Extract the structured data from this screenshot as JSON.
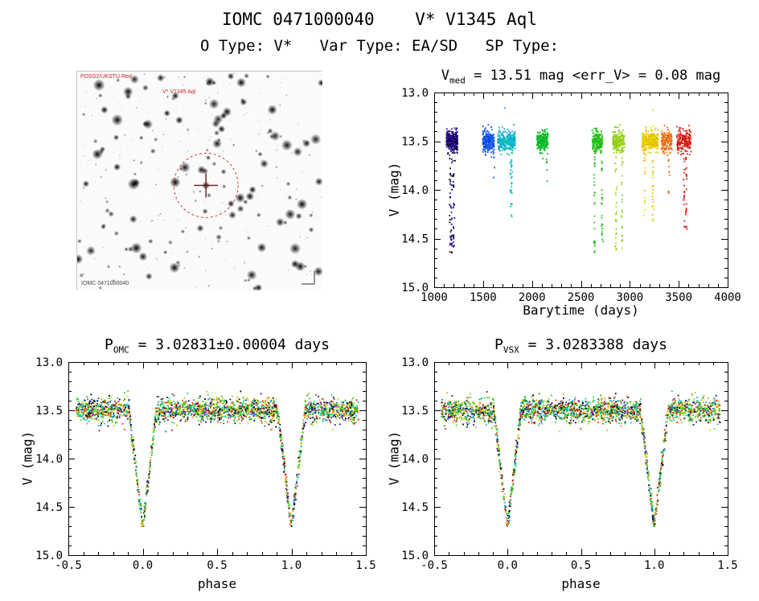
{
  "page": {
    "title": "IOMC 0471000040    V* V1345 Aql",
    "subtitle": "O Type: V*   Var Type: EA/SD   SP Type:"
  },
  "finder": {
    "labels": {
      "top_left": "POSS2/UKSTU Red",
      "star": "V* V1345 Aql",
      "bottom_left": "IOMC 0471000040"
    },
    "circle_color": "#cc2222",
    "cross_color": "#6b1a1a",
    "seed": 5,
    "n_stars": 260,
    "target_x": 0.525,
    "target_y": 0.52,
    "circle_radius": 40
  },
  "chart_data": [
    {
      "type": "scatter",
      "name": "time-lightcurve",
      "title_parts": {
        "pre": "V",
        "sub": "med",
        "post": " = 13.51 mag <err_V> = 0.08 mag"
      },
      "xlabel": "Barytime (days)",
      "ylabel": "V (mag)",
      "xlim": [
        1000,
        4000
      ],
      "ylim": [
        13.0,
        15.0
      ],
      "y_axis_reversed": true,
      "xticks": [
        1000,
        1500,
        2000,
        2500,
        3000,
        3500,
        4000
      ],
      "xtick_labels": [
        "1000",
        "1500",
        "2000",
        "2500",
        "3000",
        "3500",
        "4000"
      ],
      "yticks": [
        13.0,
        13.5,
        14.0,
        14.5,
        15.0
      ],
      "ytick_labels": [
        "13.0",
        "13.5",
        "14.0",
        "14.5",
        "15.0"
      ],
      "x_minor_step": 100,
      "y_minor_step": 0.1,
      "baseline_mag": 13.5,
      "baseline_spread": 0.055,
      "seed": 42,
      "clusters": [
        {
          "t": [
            1125,
            1240
          ],
          "colors": [
            "#000000",
            "#14007a",
            "#3a00a0",
            "#22228a"
          ],
          "n": 300,
          "streaks": 3,
          "deep_n": 70,
          "deep_to": 14.68
        },
        {
          "t": [
            1495,
            1615
          ],
          "colors": [
            "#0044dd",
            "#2266ee"
          ],
          "n": 240,
          "streaks": 1,
          "deep_n": 5,
          "deep_to": 13.95
        },
        {
          "t": [
            1650,
            1830
          ],
          "colors": [
            "#2299ee",
            "#00bbcc",
            "#00cc99"
          ],
          "n": 300,
          "streaks": 2,
          "deep_n": 28,
          "deep_to": 14.3,
          "bright": [
            13.16
          ]
        },
        {
          "t": [
            2050,
            2165
          ],
          "colors": [
            "#00b33c",
            "#19bf19"
          ],
          "n": 230,
          "streaks": 1,
          "deep_n": 6,
          "deep_to": 13.95
        },
        {
          "t": [
            2615,
            2720
          ],
          "colors": [
            "#2fcc2f",
            "#19b300"
          ],
          "n": 190,
          "streaks": 2,
          "deep_n": 55,
          "deep_to": 14.68
        },
        {
          "t": [
            2825,
            2945
          ],
          "colors": [
            "#86cc14",
            "#a3d119"
          ],
          "n": 200,
          "streaks": 2,
          "deep_n": 48,
          "deep_to": 14.62
        },
        {
          "t": [
            3125,
            3290
          ],
          "colors": [
            "#d6cf00",
            "#ead800",
            "#f2ae00"
          ],
          "n": 300,
          "streaks": 2,
          "deep_n": 32,
          "deep_to": 14.32,
          "bright": [
            13.18
          ]
        },
        {
          "t": [
            3320,
            3430
          ],
          "colors": [
            "#f07818",
            "#e86010"
          ],
          "n": 150,
          "streaks": 1,
          "deep_n": 10,
          "deep_to": 14.05
        },
        {
          "t": [
            3480,
            3625
          ],
          "colors": [
            "#e02818",
            "#cc1414"
          ],
          "n": 190,
          "streaks": 2,
          "deep_n": 38,
          "deep_to": 14.45
        }
      ]
    },
    {
      "type": "scatter",
      "name": "phase-folded-omc",
      "title_parts": {
        "pre": "P",
        "sub": "OMC",
        "post": " = 3.02831±0.00004 days"
      },
      "xlabel": "phase",
      "ylabel": "V (mag)",
      "xlim": [
        -0.5,
        1.5
      ],
      "ylim": [
        13.0,
        15.0
      ],
      "y_axis_reversed": true,
      "xticks": [
        -0.5,
        0.0,
        0.5,
        1.0,
        1.5
      ],
      "xtick_labels": [
        "-0.5",
        "0.0",
        "0.5",
        "1.0",
        "1.5"
      ],
      "yticks": [
        13.0,
        13.5,
        14.0,
        14.5,
        15.0
      ],
      "ytick_labels": [
        "13.0",
        "13.5",
        "14.0",
        "14.5",
        "15.0"
      ],
      "x_minor_step": 0.1,
      "y_minor_step": 0.1,
      "seed": 101,
      "phase_model": {
        "n": 2400,
        "x_range": [
          -0.45,
          1.45
        ],
        "baseline": 13.5,
        "spread": 0.062,
        "eclipse_half_width": 0.09,
        "eclipse_depth": 1.16,
        "palette": [
          "#2fcc2f",
          "#2fcc2f",
          "#2fcc2f",
          "#19b300",
          "#19b300",
          "#86cc14",
          "#86cc14",
          "#00cc99",
          "#00cc99",
          "#00bbcc",
          "#2266ee",
          "#14007a",
          "#14007a",
          "#000000",
          "#000000",
          "#3a00a0",
          "#d6cf00",
          "#d6cf00",
          "#f2ae00",
          "#f07818",
          "#e02818",
          "#e02818",
          "#cc1414",
          "#a3d119"
        ]
      }
    },
    {
      "type": "scatter",
      "name": "phase-folded-vsx",
      "title_parts": {
        "pre": "P",
        "sub": "VSX",
        "post": " = 3.0283388 days"
      },
      "xlabel": "phase",
      "ylabel": "V (mag)",
      "xlim": [
        -0.5,
        1.5
      ],
      "ylim": [
        13.0,
        15.0
      ],
      "y_axis_reversed": true,
      "xticks": [
        -0.5,
        0.0,
        0.5,
        1.0,
        1.5
      ],
      "xtick_labels": [
        "-0.5",
        "0.0",
        "0.5",
        "1.0",
        "1.5"
      ],
      "yticks": [
        13.0,
        13.5,
        14.0,
        14.5,
        15.0
      ],
      "ytick_labels": [
        "13.0",
        "13.5",
        "14.0",
        "14.5",
        "15.0"
      ],
      "x_minor_step": 0.1,
      "y_minor_step": 0.1,
      "seed": 202,
      "phase_model": {
        "n": 2400,
        "x_range": [
          -0.45,
          1.45
        ],
        "baseline": 13.5,
        "spread": 0.062,
        "eclipse_half_width": 0.09,
        "eclipse_depth": 1.16,
        "palette": [
          "#2fcc2f",
          "#2fcc2f",
          "#2fcc2f",
          "#19b300",
          "#19b300",
          "#86cc14",
          "#86cc14",
          "#00cc99",
          "#00cc99",
          "#00bbcc",
          "#2266ee",
          "#14007a",
          "#14007a",
          "#000000",
          "#000000",
          "#3a00a0",
          "#d6cf00",
          "#d6cf00",
          "#f2ae00",
          "#f07818",
          "#e02818",
          "#e02818",
          "#cc1414",
          "#a3d119"
        ]
      }
    }
  ]
}
